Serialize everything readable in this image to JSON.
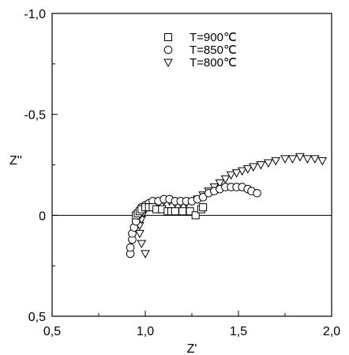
{
  "chart_data": {
    "type": "scatter",
    "title": "",
    "xlabel": "Z'",
    "ylabel": "Z''",
    "xlim": [
      0.5,
      2.0
    ],
    "ylim": [
      -1.0,
      0.5
    ],
    "y_axis_inverted": true,
    "grid": false,
    "legend_position": "top-right",
    "x_ticks": [
      "0,5",
      "1,0",
      "1,5",
      "2,0"
    ],
    "y_ticks": [
      "-1,0",
      "-0,5",
      "0",
      "0,5"
    ],
    "x_tick_values": [
      0.5,
      1.0,
      1.5,
      2.0
    ],
    "y_tick_values": [
      -1.0,
      -0.5,
      0.0,
      0.5
    ],
    "zero_line": true,
    "series": [
      {
        "name": "T=900℃",
        "marker": "square",
        "points": [
          [
            0.95,
            0.0
          ],
          [
            0.96,
            -0.01
          ],
          [
            0.97,
            -0.02
          ],
          [
            0.98,
            -0.03
          ],
          [
            1.0,
            -0.04
          ],
          [
            1.02,
            -0.04
          ],
          [
            1.04,
            -0.04
          ],
          [
            1.06,
            -0.03
          ],
          [
            1.09,
            -0.03
          ],
          [
            1.12,
            -0.02
          ],
          [
            1.14,
            -0.02
          ],
          [
            1.16,
            -0.02
          ],
          [
            1.2,
            -0.02
          ],
          [
            1.24,
            -0.02
          ],
          [
            1.27,
            0.0
          ],
          [
            1.3,
            -0.03
          ],
          [
            1.31,
            -0.04
          ]
        ]
      },
      {
        "name": "T=850℃",
        "marker": "circle",
        "points": [
          [
            0.92,
            0.19
          ],
          [
            0.92,
            0.16
          ],
          [
            0.93,
            0.12
          ],
          [
            0.93,
            0.09
          ],
          [
            0.94,
            0.06
          ],
          [
            0.95,
            0.03
          ],
          [
            0.96,
            0.0
          ],
          [
            0.97,
            -0.02
          ],
          [
            0.98,
            -0.04
          ],
          [
            1.0,
            -0.05
          ],
          [
            1.02,
            -0.06
          ],
          [
            1.04,
            -0.07
          ],
          [
            1.07,
            -0.07
          ],
          [
            1.1,
            -0.08
          ],
          [
            1.13,
            -0.08
          ],
          [
            1.16,
            -0.07
          ],
          [
            1.19,
            -0.07
          ],
          [
            1.22,
            -0.07
          ],
          [
            1.25,
            -0.07
          ],
          [
            1.28,
            -0.08
          ],
          [
            1.31,
            -0.09
          ],
          [
            1.34,
            -0.11
          ],
          [
            1.37,
            -0.12
          ],
          [
            1.4,
            -0.13
          ],
          [
            1.43,
            -0.14
          ],
          [
            1.46,
            -0.14
          ],
          [
            1.49,
            -0.14
          ],
          [
            1.52,
            -0.14
          ],
          [
            1.55,
            -0.13
          ],
          [
            1.57,
            -0.12
          ],
          [
            1.6,
            -0.11
          ]
        ]
      },
      {
        "name": "T=800℃",
        "marker": "triangle-down",
        "points": [
          [
            1.0,
            0.19
          ],
          [
            0.98,
            0.14
          ],
          [
            0.97,
            0.09
          ],
          [
            0.97,
            0.05
          ],
          [
            0.98,
            0.02
          ],
          [
            0.99,
            -0.01
          ],
          [
            1.0,
            -0.03
          ],
          [
            1.02,
            -0.05
          ],
          [
            1.04,
            -0.06
          ],
          [
            1.07,
            -0.07
          ],
          [
            1.1,
            -0.07
          ],
          [
            1.13,
            -0.07
          ],
          [
            1.16,
            -0.06
          ],
          [
            1.19,
            -0.06
          ],
          [
            1.22,
            -0.06
          ],
          [
            1.25,
            -0.07
          ],
          [
            1.28,
            -0.08
          ],
          [
            1.31,
            -0.1
          ],
          [
            1.34,
            -0.12
          ],
          [
            1.37,
            -0.14
          ],
          [
            1.4,
            -0.16
          ],
          [
            1.43,
            -0.18
          ],
          [
            1.46,
            -0.2
          ],
          [
            1.49,
            -0.21
          ],
          [
            1.52,
            -0.22
          ],
          [
            1.55,
            -0.23
          ],
          [
            1.58,
            -0.24
          ],
          [
            1.62,
            -0.25
          ],
          [
            1.66,
            -0.26
          ],
          [
            1.7,
            -0.27
          ],
          [
            1.75,
            -0.28
          ],
          [
            1.79,
            -0.28
          ],
          [
            1.83,
            -0.29
          ],
          [
            1.87,
            -0.28
          ],
          [
            1.91,
            -0.28
          ],
          [
            1.95,
            -0.27
          ]
        ]
      }
    ]
  }
}
